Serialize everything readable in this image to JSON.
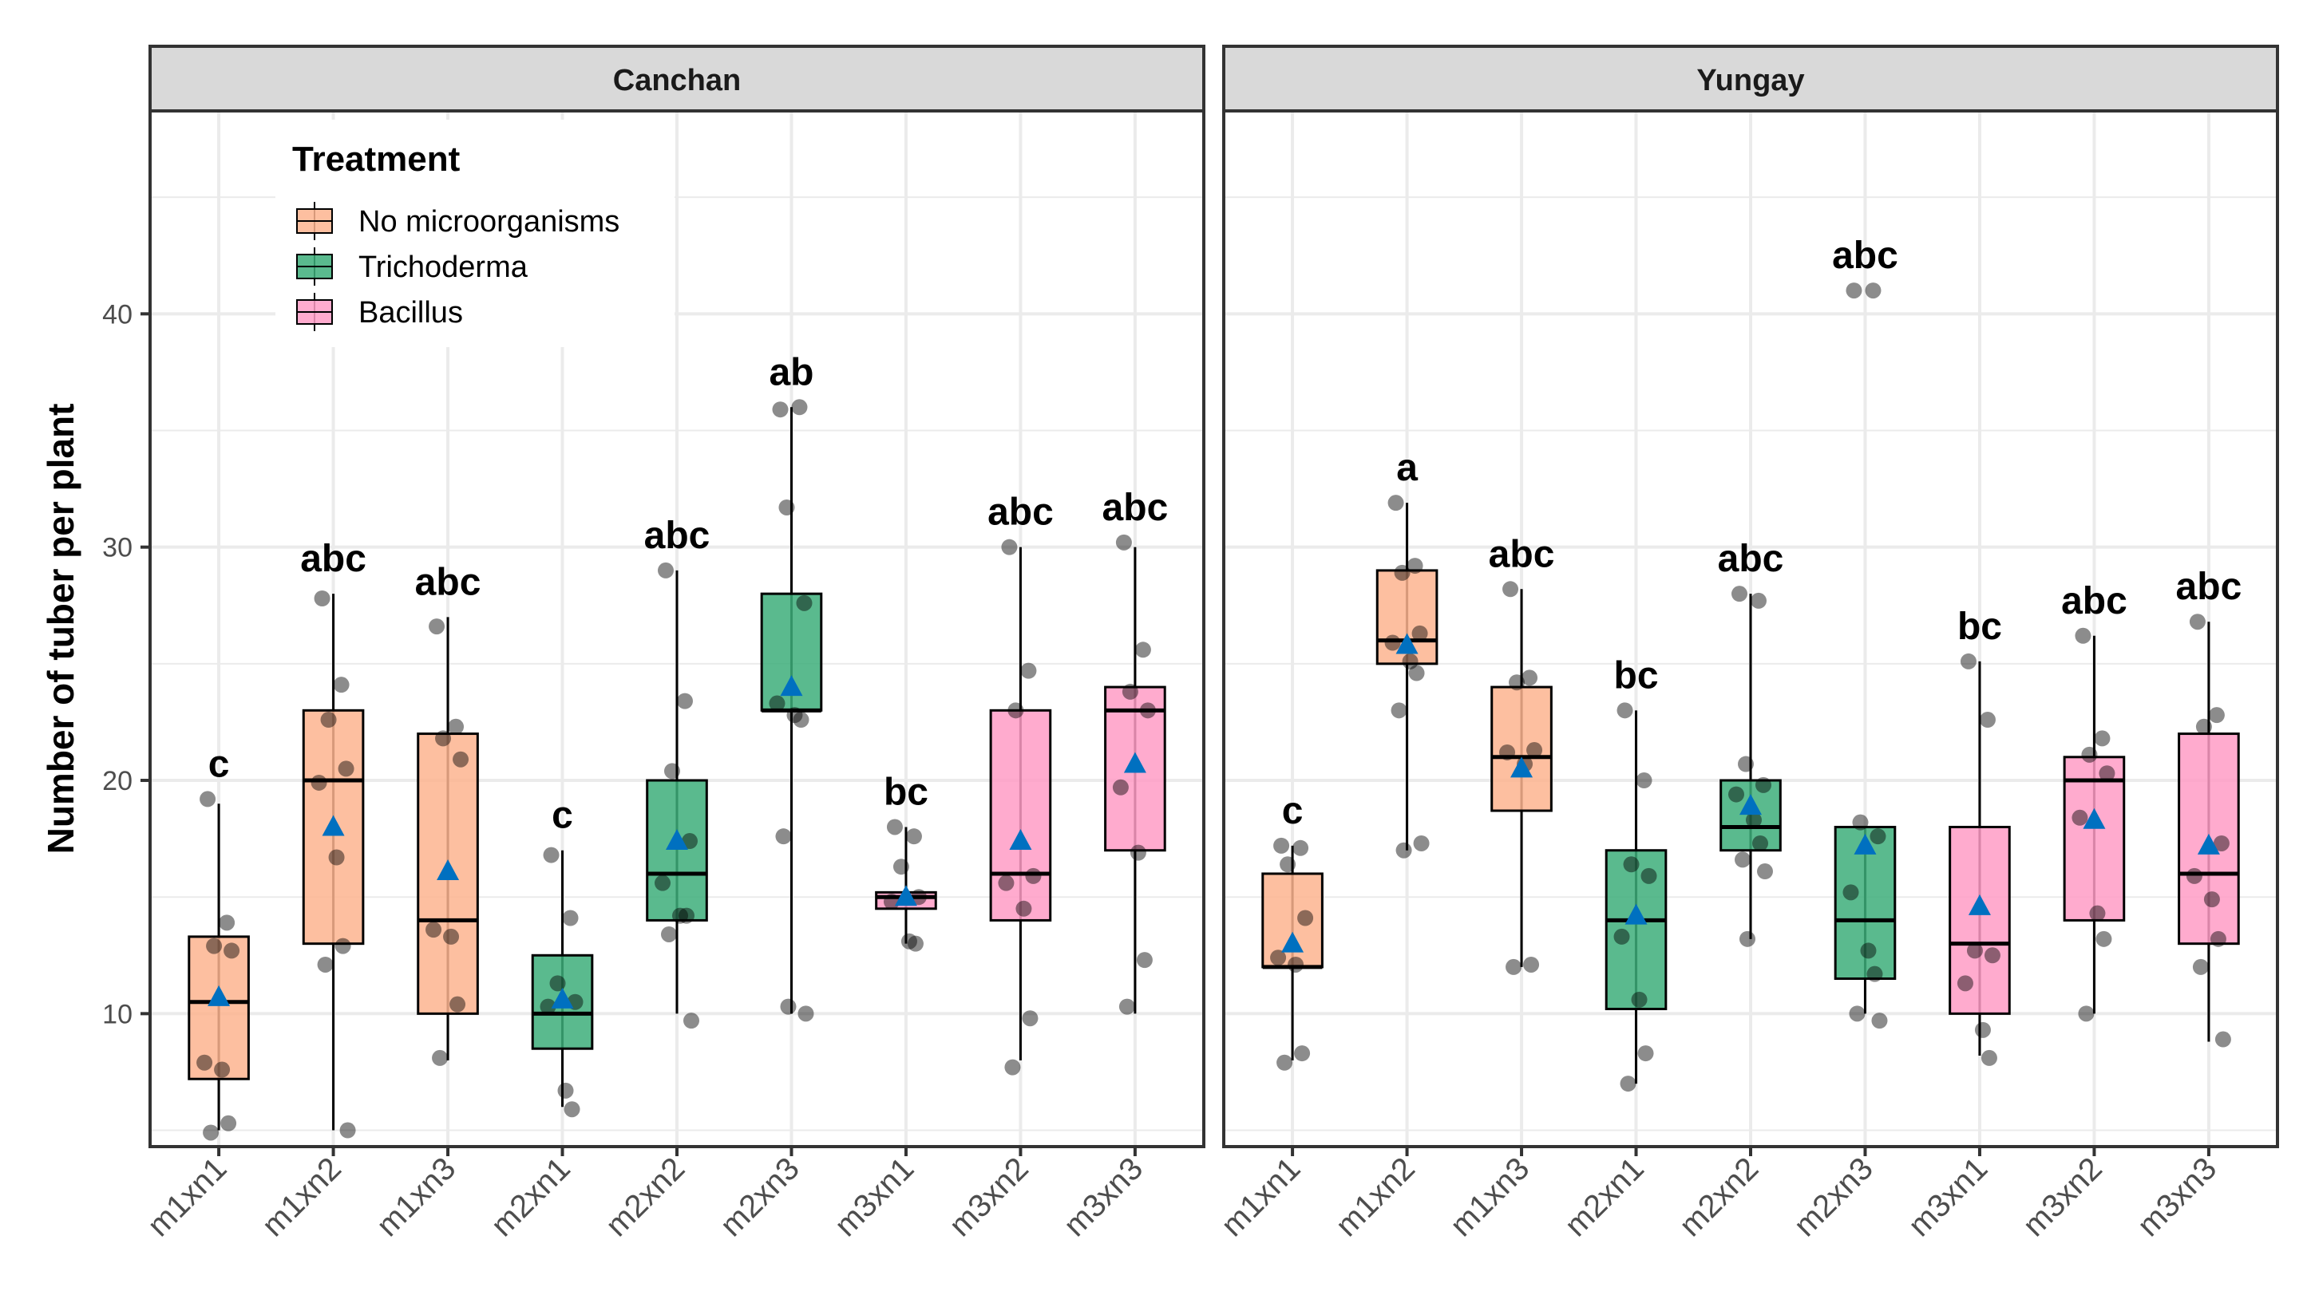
{
  "chart_data": {
    "type": "box",
    "ylabel": "Number of tuber per plant",
    "xlabel": "",
    "ylim": [
      4.3,
      48.7
    ],
    "yticks": [
      10,
      20,
      30,
      40
    ],
    "grid": true,
    "legend": {
      "title": "Treatment",
      "placement": "top-left inside first panel",
      "entries": [
        {
          "name": "No microorganisms",
          "color": "#FDB48F"
        },
        {
          "name": "Trichoderma",
          "color": "#3DAE7A"
        },
        {
          "name": "Bacillus",
          "color": "#FF9CC6"
        }
      ]
    },
    "mean_marker_color": "#0070C0",
    "categories": [
      "m1xn1",
      "m1xn2",
      "m1xn3",
      "m2xn1",
      "m2xn2",
      "m2xn3",
      "m3xn1",
      "m3xn2",
      "m3xn3"
    ],
    "treatment_of_category": [
      0,
      0,
      0,
      1,
      1,
      1,
      2,
      2,
      2
    ],
    "panels": [
      {
        "title": "Canchan",
        "boxes": [
          {
            "lo": 5,
            "q1": 7.2,
            "med": 10.5,
            "q3": 13.3,
            "hi": 19,
            "mean": 10.7,
            "letter": "c",
            "points": [
              19.2,
              13.9,
              12.9,
              12.7,
              7.9,
              7.6,
              5.3,
              4.9
            ]
          },
          {
            "lo": 5,
            "q1": 13,
            "med": 20,
            "q3": 23,
            "hi": 28,
            "mean": 18,
            "letter": "abc",
            "points": [
              27.8,
              24.1,
              22.6,
              20.5,
              19.9,
              16.7,
              12.9,
              12.1,
              5
            ]
          },
          {
            "lo": 8,
            "q1": 10,
            "med": 14,
            "q3": 22,
            "hi": 27,
            "mean": 16.1,
            "letter": "abc",
            "points": [
              26.6,
              22.3,
              21.8,
              20.9,
              13.6,
              13.3,
              10.4,
              8.1
            ]
          },
          {
            "lo": 6,
            "q1": 8.5,
            "med": 10,
            "q3": 12.5,
            "hi": 17,
            "mean": 10.6,
            "letter": "c",
            "points": [
              16.8,
              14.1,
              11.3,
              10.5,
              10.3,
              6.7,
              5.9
            ]
          },
          {
            "lo": 10,
            "q1": 14,
            "med": 16,
            "q3": 20,
            "hi": 29,
            "mean": 17.4,
            "letter": "abc",
            "points": [
              29,
              23.4,
              20.4,
              17.4,
              15.6,
              14.2,
              14.2,
              13.4,
              9.7
            ]
          },
          {
            "lo": 10,
            "q1": 23,
            "med": 23,
            "q3": 28,
            "hi": 36,
            "mean": 24,
            "letter": "ab",
            "points": [
              35.9,
              36,
              31.7,
              27.6,
              23.3,
              22.8,
              22.6,
              17.6,
              10,
              10.3
            ]
          },
          {
            "lo": 13,
            "q1": 14.5,
            "med": 15,
            "q3": 15.2,
            "hi": 18,
            "mean": 15,
            "letter": "bc",
            "points": [
              18,
              17.6,
              16.3,
              15,
              14.8,
              13.1,
              13
            ]
          },
          {
            "lo": 8,
            "q1": 14,
            "med": 16,
            "q3": 23,
            "hi": 30,
            "mean": 17.4,
            "letter": "abc",
            "points": [
              30,
              24.7,
              23,
              15.9,
              15.6,
              14.5,
              9.8,
              7.7
            ]
          },
          {
            "lo": 10,
            "q1": 17,
            "med": 23,
            "q3": 24,
            "hi": 30,
            "mean": 20.7,
            "letter": "abc",
            "points": [
              30.2,
              25.6,
              23.8,
              23,
              19.7,
              16.9,
              12.3,
              10.3
            ]
          }
        ]
      },
      {
        "title": "Yungay",
        "boxes": [
          {
            "lo": 8,
            "q1": 12,
            "med": 12,
            "q3": 16,
            "hi": 17.2,
            "mean": 13,
            "letter": "c",
            "points": [
              17.2,
              17.1,
              16.4,
              14.1,
              12.4,
              12.1,
              8.3,
              7.9
            ]
          },
          {
            "lo": 17,
            "q1": 25,
            "med": 26,
            "q3": 29,
            "hi": 31.9,
            "mean": 25.8,
            "letter": "a",
            "points": [
              31.9,
              29.2,
              28.9,
              26.3,
              25.9,
              25.1,
              24.6,
              23,
              17.3,
              17
            ]
          },
          {
            "lo": 12,
            "q1": 18.7,
            "med": 21,
            "q3": 24,
            "hi": 28.2,
            "mean": 20.5,
            "letter": "abc",
            "points": [
              28.2,
              24.4,
              24.2,
              21.3,
              21.2,
              20.7,
              12.1,
              12
            ]
          },
          {
            "lo": 7,
            "q1": 10.2,
            "med": 14,
            "q3": 17,
            "hi": 23,
            "mean": 14.2,
            "letter": "bc",
            "points": [
              23,
              20,
              16.4,
              15.9,
              13.3,
              10.6,
              8.3,
              7
            ]
          },
          {
            "lo": 13.2,
            "q1": 17,
            "med": 18,
            "q3": 20,
            "hi": 28,
            "mean": 18.9,
            "letter": "abc",
            "points": [
              28,
              27.7,
              20.7,
              19.8,
              19.4,
              18.3,
              17.3,
              16.6,
              16.1,
              13.2
            ]
          },
          {
            "lo": 10,
            "q1": 11.5,
            "med": 14,
            "q3": 18,
            "hi": 18,
            "mean": 17.2,
            "letter": "abc",
            "points": [
              41,
              41,
              18.2,
              17.6,
              15.2,
              12.7,
              11.7,
              10,
              9.7
            ]
          },
          {
            "lo": 8.2,
            "q1": 10,
            "med": 13,
            "q3": 18,
            "hi": 25.1,
            "mean": 14.6,
            "letter": "bc",
            "points": [
              25.1,
              22.6,
              12.7,
              12.5,
              11.3,
              9.3,
              8.1
            ]
          },
          {
            "lo": 10,
            "q1": 14,
            "med": 20,
            "q3": 21,
            "hi": 26.2,
            "mean": 18.3,
            "letter": "abc",
            "points": [
              26.2,
              21.8,
              21.1,
              20.3,
              18.4,
              14.3,
              13.2,
              10
            ]
          },
          {
            "lo": 8.8,
            "q1": 13,
            "med": 16,
            "q3": 22,
            "hi": 26.8,
            "mean": 17.2,
            "letter": "abc",
            "points": [
              26.8,
              22.8,
              22.3,
              17.3,
              15.9,
              14.9,
              13.2,
              12,
              8.9
            ]
          }
        ]
      }
    ]
  }
}
